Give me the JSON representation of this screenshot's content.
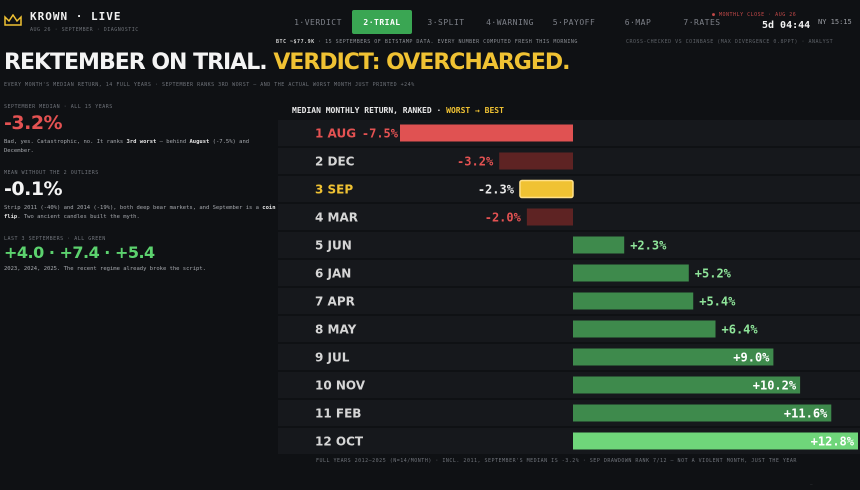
{
  "header": {
    "brand": "KROWN · LIVE",
    "brand_sub": "AUG 26 · SEPTEMBER · DIAGNOSTIC",
    "tabs": [
      {
        "label": "1·VERDICT",
        "active": false
      },
      {
        "label": "2·TRIAL",
        "active": true
      },
      {
        "label": "3·SPLIT",
        "active": false
      },
      {
        "label": "4·WARNING",
        "active": false
      },
      {
        "label": "5·PAYOFF",
        "active": false
      },
      {
        "label": "6·MAP",
        "active": false
      },
      {
        "label": "7·RATES",
        "active": false
      }
    ],
    "clock_label": "● MONTHLY CLOSE · AUG 26",
    "clock_value": "5d 04:44",
    "clock_zone": "NY 15:15",
    "ticker_lead": "BTC ~$77.9K",
    "ticker_text": " · 15 SEPTEMBERS OF BITSTAMP DATA. EVERY NUMBER COMPUTED FRESH THIS MORNING",
    "ticker_right": "CROSS-CHECKED VS COINBASE (MAX DIVERGENCE 0.8PPT) · ANALYST"
  },
  "headline": {
    "part1": "REKTEMBER ON TRIAL.",
    "part2": "VERDICT: OVERCHARGED.",
    "subline": "EVERY MONTH'S MEDIAN RETURN, 14 FULL YEARS · SEPTEMBER RANKS 3RD WORST — AND THE ACTUAL WORST MONTH JUST PRINTED +24%"
  },
  "stats": {
    "s1_label": "SEPTEMBER MEDIAN · ALL 15 YEARS",
    "s1_value": "-3.2%",
    "s1_note_a": "Bad, yes. Catastrophic, no. It ranks ",
    "s1_note_b": "3rd worst",
    "s1_note_c": " — behind ",
    "s1_note_d": "August",
    "s1_note_e": " (-7.5%) and December.",
    "s2_label": "MEAN WITHOUT THE 2 OUTLIERS",
    "s2_value": "-0.1%",
    "s2_note_a": "Strip 2011 (-40%) and 2014 (-19%), both deep bear markets, and September is a ",
    "s2_note_b": "coin flip",
    "s2_note_c": ". Two ancient candles built the myth.",
    "s3_label": "LAST 3 SEPTEMBERS · ALL GREEN",
    "s3_value": "+4.0 · +7.4 · +5.4",
    "s3_note": "2023, 2024, 2025. The recent regime already broke the script."
  },
  "chart_data": {
    "type": "bar",
    "orientation": "horizontal",
    "title_prefix": "MEDIAN MONTHLY RETURN, RANKED · ",
    "title_highlight": "WORST → BEST",
    "categories": [
      "1 AUG",
      "2 DEC",
      "3 SEP",
      "4 MAR",
      "5 JUN",
      "6 JAN",
      "7 APR",
      "8 MAY",
      "9 JUL",
      "10 NOV",
      "11 FEB",
      "12 OCT"
    ],
    "values": [
      -7.5,
      -3.2,
      -2.3,
      -2.0,
      2.3,
      5.2,
      5.4,
      6.4,
      9.0,
      10.2,
      11.6,
      12.8
    ],
    "labels": [
      "-7.5%",
      "-3.2%",
      "-2.3%",
      "-2.0%",
      "+2.3%",
      "+5.2%",
      "+5.4%",
      "+6.4%",
      "+9.0%",
      "+10.2%",
      "+11.6%",
      "+12.8%"
    ],
    "highlight_category": "3 SEP",
    "xlim": [
      -7.5,
      12.8
    ],
    "grid": false,
    "colors": {
      "worst": "#e05252",
      "negative": "#5e2323",
      "highlight": "#f0c233",
      "positive": "#3e8a4c",
      "best": "#6fd67a",
      "label_red": "#e45252",
      "label_green": "#8fe59a",
      "label_white": "#ffffff"
    },
    "footer": "FULL YEARS 2012–2025 (N=14/MONTH) · INCL. 2011, SEPTEMBER'S MEDIAN IS -3.2% · SEP DRAWDOWN RANK 7/12 — NOT A VIOLENT MONTH, JUST THE YEAR"
  },
  "icons": {
    "brand": "crown-icon"
  }
}
